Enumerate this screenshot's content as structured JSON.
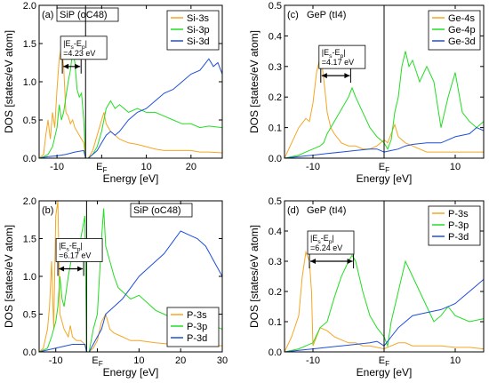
{
  "colors": {
    "s": "#f5a623",
    "p": "#22dd22",
    "d": "#1f4fd8",
    "axis": "#000000"
  },
  "chart_data": [
    {
      "type": "line",
      "panel_label": "(a)",
      "title": "SiP (oC48)",
      "xlabel": "Energy [eV]",
      "ylabel": "DOS [states/eV atom]",
      "xlim": [
        -14,
        27
      ],
      "ylim": [
        0,
        2
      ],
      "xticks": [
        -10,
        0,
        10,
        20
      ],
      "xtick_labels": [
        "-10",
        "E_F",
        "10",
        "20"
      ],
      "yticks": [
        0,
        0.5,
        1,
        1.5,
        2
      ],
      "ytick_labels": [
        "0.0",
        "0.5",
        "1.0",
        "1.5",
        "2.0"
      ],
      "fermi_x": -3.6,
      "legend": "top-right",
      "annotation": {
        "label": "|E_s-E_p|",
        "value": "=4.23 eV",
        "x1": -8.8,
        "x2": -4.6,
        "y": 1.2
      },
      "series": [
        {
          "name": "Si-3s",
          "color": "s",
          "x": [
            -14,
            -13,
            -12.5,
            -12,
            -11.5,
            -11,
            -10.5,
            -10,
            -9.5,
            -9,
            -8.5,
            -8,
            -7.5,
            -7,
            -6.5,
            -6,
            -5.5,
            -5,
            -4.5,
            -4,
            -3.6,
            -3,
            -2.5,
            -2,
            -1,
            0,
            0.5,
            1,
            2,
            3,
            4,
            6,
            8,
            10,
            12,
            14,
            16,
            18,
            20,
            22,
            24,
            27
          ],
          "y": [
            0,
            0.05,
            0.3,
            0.5,
            0.25,
            0.6,
            0.4,
            0.9,
            1.3,
            1.45,
            1.2,
            0.6,
            0.55,
            0.45,
            0.5,
            0.4,
            0.35,
            0.3,
            0.25,
            0.2,
            0,
            0,
            0.05,
            0.1,
            0.3,
            0.5,
            0.6,
            0.45,
            0.35,
            0.3,
            0.25,
            0.2,
            0.18,
            0.15,
            0.12,
            0.1,
            0.1,
            0.1,
            0.1,
            0.08,
            0.08,
            0.07
          ]
        },
        {
          "name": "Si-3p",
          "color": "p",
          "x": [
            -14,
            -13,
            -12,
            -11,
            -10,
            -9.5,
            -9,
            -8.5,
            -8,
            -7.5,
            -7,
            -6.5,
            -6,
            -5.5,
            -5,
            -4.5,
            -4,
            -3.6,
            -3,
            -2,
            -1,
            0,
            1,
            2,
            3,
            4,
            5,
            6,
            8,
            10,
            12,
            14,
            16,
            18,
            20,
            22,
            24,
            27
          ],
          "y": [
            0,
            0.02,
            0.05,
            0.15,
            0.4,
            0.7,
            0.5,
            0.6,
            0.8,
            1.0,
            1.15,
            1.4,
            1.25,
            0.9,
            0.8,
            0.85,
            0.5,
            0,
            0,
            0.05,
            0.15,
            0.35,
            0.65,
            0.75,
            0.65,
            0.7,
            0.65,
            0.6,
            0.65,
            0.6,
            0.6,
            0.55,
            0.5,
            0.45,
            0.45,
            0.4,
            0.42,
            0.4
          ]
        },
        {
          "name": "Si-3d",
          "color": "d",
          "x": [
            -14,
            -12,
            -10,
            -8,
            -6,
            -4,
            -3.6,
            -3,
            -2,
            -1,
            0,
            1,
            2,
            3,
            4,
            6,
            8,
            10,
            12,
            14,
            16,
            18,
            20,
            22,
            24,
            25,
            26,
            27
          ],
          "y": [
            0,
            0.02,
            0.03,
            0.05,
            0.08,
            0.1,
            0,
            0,
            0.05,
            0.1,
            0.2,
            0.3,
            0.35,
            0.3,
            0.35,
            0.5,
            0.6,
            0.65,
            0.75,
            0.85,
            0.9,
            1.0,
            1.1,
            1.15,
            1.3,
            1.2,
            1.25,
            1.1
          ]
        }
      ]
    },
    {
      "type": "line",
      "panel_label": "(c)",
      "title": "GeP (tI4)",
      "xlabel": "Energy [eV]",
      "ylabel": "DOS [states/eV atom]",
      "xlim": [
        -14,
        14
      ],
      "ylim": [
        0,
        0.5
      ],
      "xticks": [
        -10,
        0,
        10
      ],
      "xtick_labels": [
        "-10",
        "E_F",
        "10"
      ],
      "yticks": [
        0,
        0.1,
        0.2,
        0.3,
        0.4,
        0.5
      ],
      "ytick_labels": [
        "0.0",
        "0.1",
        "0.2",
        "0.3",
        "0.4",
        "0.5"
      ],
      "fermi_x": 0,
      "legend": "top-right",
      "annotation": {
        "label": "|E_s-E_p|",
        "value": "=4.17 eV",
        "x1": -8.9,
        "x2": -4.7,
        "y": 0.27
      },
      "series": [
        {
          "name": "Ge-4s",
          "color": "s",
          "x": [
            -14,
            -13,
            -12,
            -11,
            -10.5,
            -10,
            -9.5,
            -9,
            -8.7,
            -8.3,
            -8,
            -7.5,
            -7,
            -6,
            -5,
            -4,
            -3,
            -2,
            -1,
            0,
            0.5,
            1,
            1.5,
            2,
            3,
            4,
            5,
            6,
            8,
            10,
            12,
            14
          ],
          "y": [
            0,
            0.05,
            0.1,
            0.13,
            0.12,
            0.18,
            0.28,
            0.33,
            0.3,
            0.22,
            0.15,
            0.1,
            0.08,
            0.05,
            0.04,
            0.04,
            0.03,
            0.03,
            0.04,
            0.06,
            0.05,
            0.08,
            0.11,
            0.07,
            0.05,
            0.04,
            0.03,
            0.02,
            0.02,
            0.02,
            0.02,
            0.02
          ]
        },
        {
          "name": "Ge-4p",
          "color": "p",
          "x": [
            -14,
            -12,
            -11,
            -10,
            -9,
            -8.5,
            -8,
            -7,
            -6,
            -5,
            -4.5,
            -4,
            -3,
            -2,
            -1,
            0,
            0.5,
            1,
            1.5,
            2,
            2.5,
            3,
            3.5,
            4,
            5,
            6,
            7,
            8,
            9,
            10,
            11,
            12,
            13,
            14
          ],
          "y": [
            0,
            0.01,
            0.02,
            0.03,
            0.04,
            0.05,
            0.08,
            0.12,
            0.16,
            0.2,
            0.23,
            0.2,
            0.15,
            0.1,
            0.07,
            0.05,
            0.03,
            0.06,
            0.15,
            0.2,
            0.3,
            0.35,
            0.3,
            0.32,
            0.25,
            0.3,
            0.25,
            0.1,
            0.2,
            0.28,
            0.15,
            0.12,
            0.1,
            0.12
          ]
        },
        {
          "name": "Ge-3d",
          "color": "d",
          "x": [
            -14,
            -12,
            -10,
            -8,
            -6,
            -4,
            -2,
            -1,
            0,
            1,
            2,
            3,
            4,
            6,
            8,
            10,
            12,
            13,
            14
          ],
          "y": [
            0,
            0.005,
            0.01,
            0.015,
            0.02,
            0.025,
            0.03,
            0.03,
            0.02,
            0.025,
            0.03,
            0.04,
            0.045,
            0.05,
            0.05,
            0.07,
            0.08,
            0.1,
            0.09
          ]
        }
      ]
    },
    {
      "type": "line",
      "panel_label": "(b)",
      "title": "SiP (oC48)",
      "xlabel": "Energy [eV]",
      "ylabel": "DOS [states/eV atom]",
      "xlim": [
        -14,
        30
      ],
      "ylim": [
        0,
        2
      ],
      "xticks": [
        -10,
        0,
        10,
        20,
        30
      ],
      "xtick_labels": [
        "-10",
        "E_F",
        "10",
        "20",
        "30"
      ],
      "yticks": [
        0,
        0.5,
        1,
        1.5,
        2
      ],
      "ytick_labels": [
        "0.0",
        "0.5",
        "1.0",
        "1.5",
        "2.0"
      ],
      "fermi_x": -2.6,
      "legend": "bottom-right",
      "annotation": {
        "label": "|E_s-E_p|",
        "value": "=6.17 eV",
        "x1": -9.5,
        "x2": -3.3,
        "y": 1.1
      },
      "series": [
        {
          "name": "P-3s",
          "color": "s",
          "x": [
            -14,
            -13,
            -12,
            -11.5,
            -11,
            -10.5,
            -10,
            -9.5,
            -9,
            -8.5,
            -8,
            -7.5,
            -7,
            -6.5,
            -6,
            -5,
            -4,
            -3,
            -2.6,
            -2,
            -1,
            0,
            1,
            2,
            3,
            4,
            6,
            8,
            10,
            14,
            18,
            22,
            26,
            30
          ],
          "y": [
            0,
            0.05,
            0.3,
            0.6,
            1.2,
            0.3,
            1.8,
            2.0,
            0.5,
            0.4,
            0.3,
            0.25,
            0.2,
            0.35,
            0.2,
            0.15,
            0.15,
            0.1,
            0,
            0,
            0.05,
            0.15,
            0.4,
            0.5,
            0.3,
            0.25,
            0.2,
            0.15,
            0.15,
            0.12,
            0.1,
            0.1,
            0.1,
            0.08
          ]
        },
        {
          "name": "P-3p",
          "color": "p",
          "x": [
            -14,
            -12,
            -11,
            -10,
            -9.5,
            -9,
            -8.5,
            -8,
            -7,
            -6,
            -5,
            -4,
            -3,
            -2.6,
            -2,
            -1,
            0,
            0.5,
            1,
            1.5,
            2,
            3,
            4,
            5,
            6,
            8,
            10,
            12,
            14,
            16,
            18,
            20,
            22,
            24,
            26,
            28,
            30
          ],
          "y": [
            0,
            0.05,
            0.2,
            0.4,
            0.6,
            1.0,
            0.7,
            0.6,
            1.0,
            1.3,
            1.2,
            1.5,
            1.8,
            0,
            0,
            0.3,
            0.5,
            1.0,
            1.5,
            1.9,
            1.4,
            1.2,
            1.0,
            0.85,
            0.8,
            0.7,
            0.75,
            0.65,
            0.55,
            0.5,
            0.45,
            0.5,
            0.45,
            0.4,
            0.4,
            0.35,
            0.3
          ]
        },
        {
          "name": "P-3d",
          "color": "d",
          "x": [
            -14,
            -10,
            -6,
            -3,
            -2.6,
            -2,
            -1,
            0,
            1,
            2,
            4,
            6,
            8,
            10,
            12,
            14,
            16,
            18,
            20,
            22,
            24,
            26,
            27,
            28,
            29,
            30
          ],
          "y": [
            0,
            0.05,
            0.1,
            0.1,
            0,
            0,
            0.1,
            0.2,
            0.3,
            0.5,
            0.6,
            0.7,
            0.85,
            1.0,
            1.1,
            1.2,
            1.3,
            1.45,
            1.6,
            1.55,
            1.5,
            1.4,
            1.3,
            1.2,
            1.1,
            1.0
          ]
        }
      ]
    },
    {
      "type": "line",
      "panel_label": "(d)",
      "title": "GeP (tI4)",
      "xlabel": "Energy [eV]",
      "ylabel": "DOS [states/eV atom]",
      "xlim": [
        -14,
        14
      ],
      "ylim": [
        0,
        0.5
      ],
      "xticks": [
        -10,
        0,
        10
      ],
      "xtick_labels": [
        "-10",
        "E_F",
        "10"
      ],
      "yticks": [
        0,
        0.1,
        0.2,
        0.3,
        0.4,
        0.5
      ],
      "ytick_labels": [
        "0.0",
        "0.1",
        "0.2",
        "0.3",
        "0.4",
        "0.5"
      ],
      "fermi_x": 0,
      "legend": "top-right",
      "annotation": {
        "label": "|E_s-E_p|",
        "value": "=6.24 eV",
        "x1": -10.5,
        "x2": -4.3,
        "y": 0.3
      },
      "series": [
        {
          "name": "P-3s",
          "color": "s",
          "x": [
            -14,
            -13,
            -12,
            -11.5,
            -11,
            -10.5,
            -10.2,
            -10,
            -9.5,
            -9,
            -8,
            -7,
            -6,
            -5,
            -4,
            -3,
            -2,
            -1,
            0,
            1,
            2,
            3,
            4,
            6,
            8,
            10,
            12,
            14
          ],
          "y": [
            0,
            0.05,
            0.12,
            0.25,
            0.33,
            0.3,
            0.2,
            0.02,
            0.05,
            0.08,
            0.07,
            0.05,
            0.04,
            0.03,
            0.03,
            0.02,
            0.02,
            0.015,
            0.01,
            0.02,
            0.03,
            0.03,
            0.02,
            0.02,
            0.02,
            0.015,
            0.015,
            0.01
          ]
        },
        {
          "name": "P-3p",
          "color": "p",
          "x": [
            -14,
            -12,
            -11,
            -10,
            -9,
            -8,
            -7,
            -6,
            -5,
            -4.5,
            -4,
            -3,
            -2,
            -1,
            0,
            0.5,
            1,
            2,
            3,
            4,
            5,
            6,
            7,
            8,
            9,
            10,
            12,
            14
          ],
          "y": [
            0,
            0.01,
            0.02,
            0.03,
            0.08,
            0.1,
            0.18,
            0.25,
            0.3,
            0.32,
            0.3,
            0.2,
            0.12,
            0.08,
            0.05,
            0.02,
            0.1,
            0.2,
            0.3,
            0.25,
            0.2,
            0.15,
            0.1,
            0.12,
            0.15,
            0.12,
            0.1,
            0.11
          ]
        },
        {
          "name": "P-3d",
          "color": "d",
          "x": [
            -14,
            -12,
            -10,
            -8,
            -6,
            -4,
            -2,
            -1,
            0,
            1,
            2,
            3,
            4,
            6,
            8,
            10,
            11,
            12,
            13,
            14
          ],
          "y": [
            0,
            0.005,
            0.01,
            0.015,
            0.02,
            0.025,
            0.03,
            0.035,
            0.02,
            0.05,
            0.08,
            0.1,
            0.12,
            0.13,
            0.14,
            0.16,
            0.18,
            0.2,
            0.22,
            0.24
          ]
        }
      ]
    }
  ]
}
